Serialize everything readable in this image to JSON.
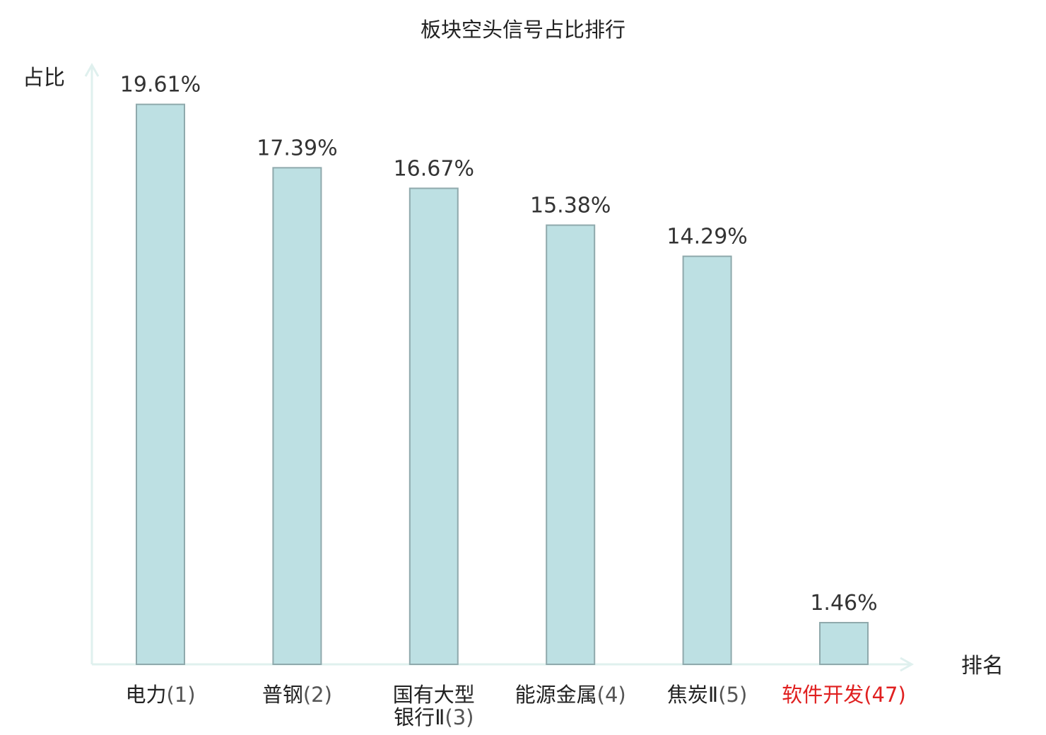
{
  "chart_data": {
    "type": "bar",
    "title": "板块空头信号占比排行",
    "ylabel": "占比",
    "xlabel": "排名",
    "value_suffix": "%",
    "ylim": [
      0,
      21
    ],
    "grid": false,
    "legend": "none",
    "categories": [
      {
        "name": "电力",
        "rank": "(1)",
        "name_line2": "",
        "highlight": false
      },
      {
        "name": "普钢",
        "rank": "(2)",
        "name_line2": "",
        "highlight": false
      },
      {
        "name": "国有大型",
        "name_line2": "银行Ⅱ",
        "rank": "(3)",
        "highlight": false
      },
      {
        "name": "能源金属",
        "rank": "(4)",
        "name_line2": "",
        "highlight": false
      },
      {
        "name": "焦炭Ⅱ",
        "rank": "(5)",
        "name_line2": "",
        "highlight": false
      },
      {
        "name": "软件开发",
        "rank": "(47)",
        "name_line2": "",
        "highlight": true
      }
    ],
    "values": [
      19.61,
      17.39,
      16.67,
      15.38,
      14.29,
      1.46
    ],
    "value_labels": [
      "19.61%",
      "17.39%",
      "16.67%",
      "15.38%",
      "14.29%",
      "1.46%"
    ]
  },
  "colors": {
    "bar_fill": "#bde0e3",
    "bar_stroke": "#8fa9ac",
    "axis": "#dff0ee",
    "text": "#222222",
    "rank_text": "#555555",
    "highlight": "#e02020"
  }
}
